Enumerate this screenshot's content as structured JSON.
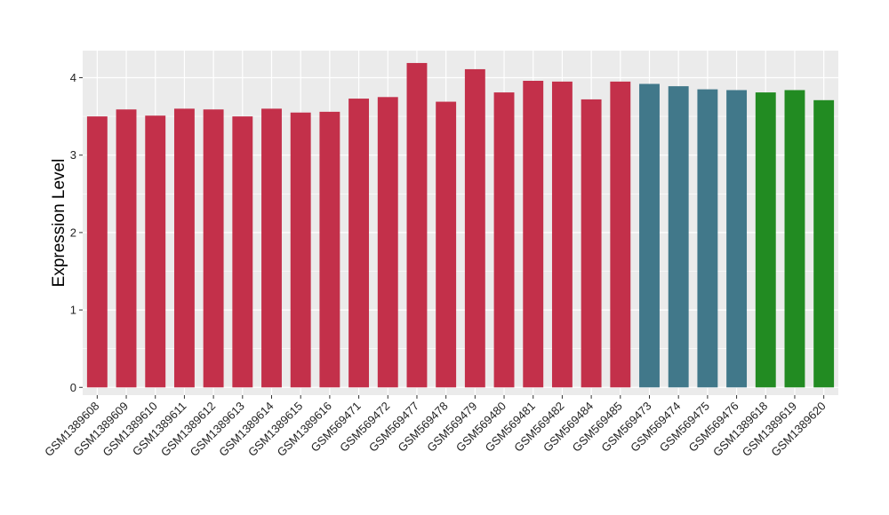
{
  "chart_data": {
    "type": "bar",
    "title": "",
    "xlabel": "",
    "ylabel": "Expression Level",
    "ylim": [
      -0.1,
      4.35
    ],
    "yticks": [
      0,
      1,
      2,
      3,
      4
    ],
    "grid": true,
    "legend": "none",
    "colors": {
      "panel_background": "#ebebeb",
      "grid": "#ffffff",
      "group_red": "#c3304a",
      "group_teal": "#41788a",
      "group_green": "#228b22"
    },
    "categories": [
      "GSM1389608",
      "GSM1389609",
      "GSM1389610",
      "GSM1389611",
      "GSM1389612",
      "GSM1389613",
      "GSM1389614",
      "GSM1389615",
      "GSM1389616",
      "GSM569471",
      "GSM569472",
      "GSM569477",
      "GSM569478",
      "GSM569479",
      "GSM569480",
      "GSM569481",
      "GSM569482",
      "GSM569484",
      "GSM569485",
      "GSM569473",
      "GSM569474",
      "GSM569475",
      "GSM569476",
      "GSM1389618",
      "GSM1389619",
      "GSM1389620"
    ],
    "values": [
      3.5,
      3.59,
      3.51,
      3.6,
      3.59,
      3.5,
      3.6,
      3.55,
      3.56,
      3.73,
      3.75,
      4.19,
      3.69,
      4.11,
      3.81,
      3.96,
      3.95,
      3.72,
      3.95,
      3.92,
      3.89,
      3.85,
      3.84,
      3.81,
      3.84,
      3.71
    ],
    "bar_colors": [
      "#c3304a",
      "#c3304a",
      "#c3304a",
      "#c3304a",
      "#c3304a",
      "#c3304a",
      "#c3304a",
      "#c3304a",
      "#c3304a",
      "#c3304a",
      "#c3304a",
      "#c3304a",
      "#c3304a",
      "#c3304a",
      "#c3304a",
      "#c3304a",
      "#c3304a",
      "#c3304a",
      "#c3304a",
      "#41788a",
      "#41788a",
      "#41788a",
      "#41788a",
      "#228b22",
      "#228b22",
      "#228b22"
    ]
  }
}
